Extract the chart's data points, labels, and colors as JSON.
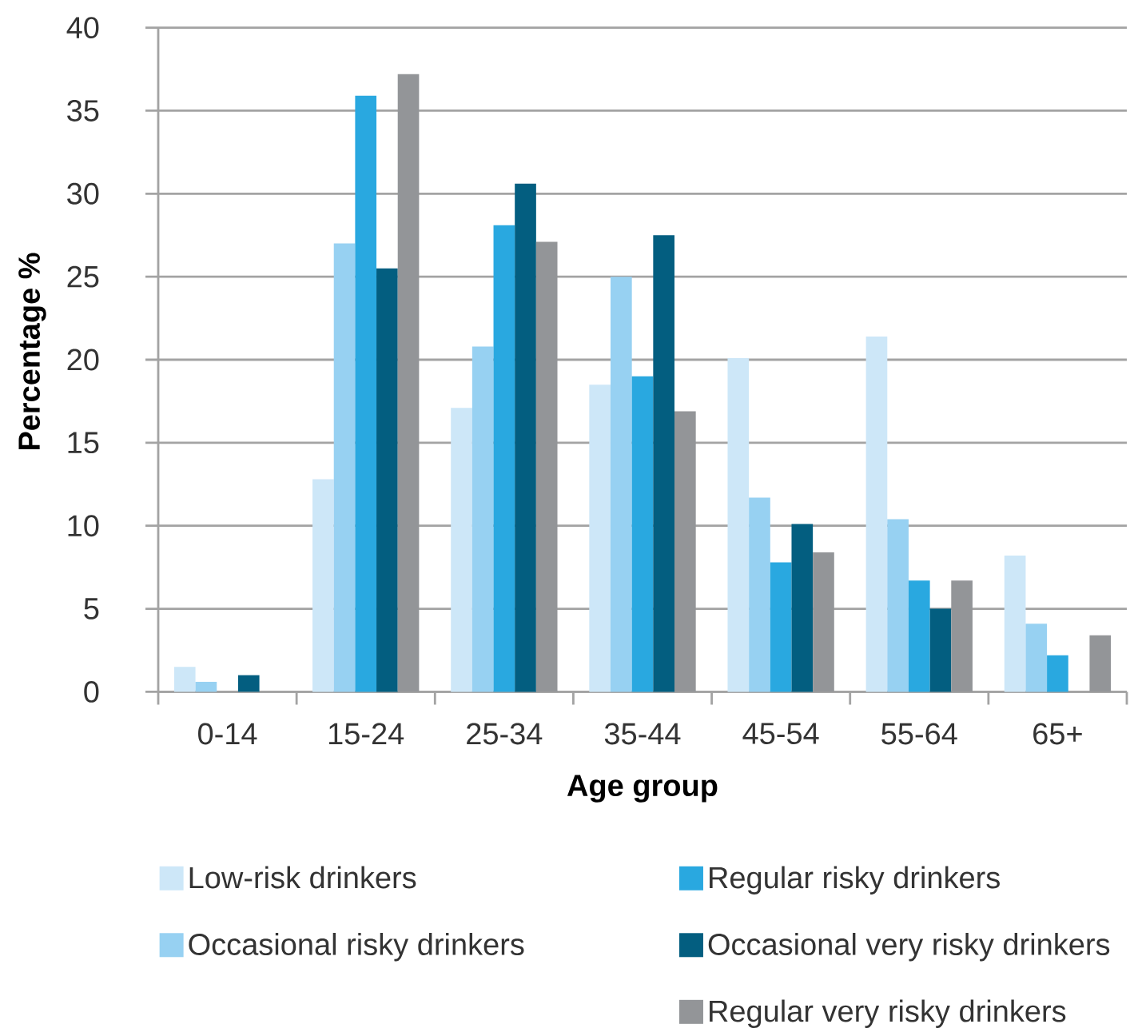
{
  "chart_data": {
    "type": "bar",
    "xlabel": "Age group",
    "ylabel": "Percentage %",
    "categories": [
      "0-14",
      "15-24",
      "25-34",
      "35-44",
      "45-54",
      "55-64",
      "65+"
    ],
    "series": [
      {
        "name": "Low-risk drinkers",
        "color": "#cde7f8",
        "values": [
          1.5,
          12.8,
          17.1,
          18.5,
          20.1,
          21.4,
          8.2
        ]
      },
      {
        "name": "Occasional risky drinkers",
        "color": "#97d1f2",
        "values": [
          0.6,
          27.0,
          20.8,
          25.0,
          11.7,
          10.4,
          4.1
        ]
      },
      {
        "name": "Regular risky drinkers",
        "color": "#29a8e0",
        "values": [
          null,
          35.9,
          28.1,
          19.0,
          7.8,
          6.7,
          2.2
        ]
      },
      {
        "name": "Occasional very risky drinkers",
        "color": "#035e80",
        "values": [
          1.0,
          25.5,
          30.6,
          27.5,
          10.1,
          5.0,
          null
        ]
      },
      {
        "name": "Regular very risky drinkers",
        "color": "#939598",
        "values": [
          null,
          37.2,
          27.1,
          16.9,
          8.4,
          6.7,
          3.4
        ]
      }
    ],
    "ylim": [
      0,
      40
    ],
    "yticks": [
      0,
      5,
      10,
      15,
      20,
      25,
      30,
      35,
      40
    ],
    "grid": "y",
    "legend": "bottom"
  }
}
